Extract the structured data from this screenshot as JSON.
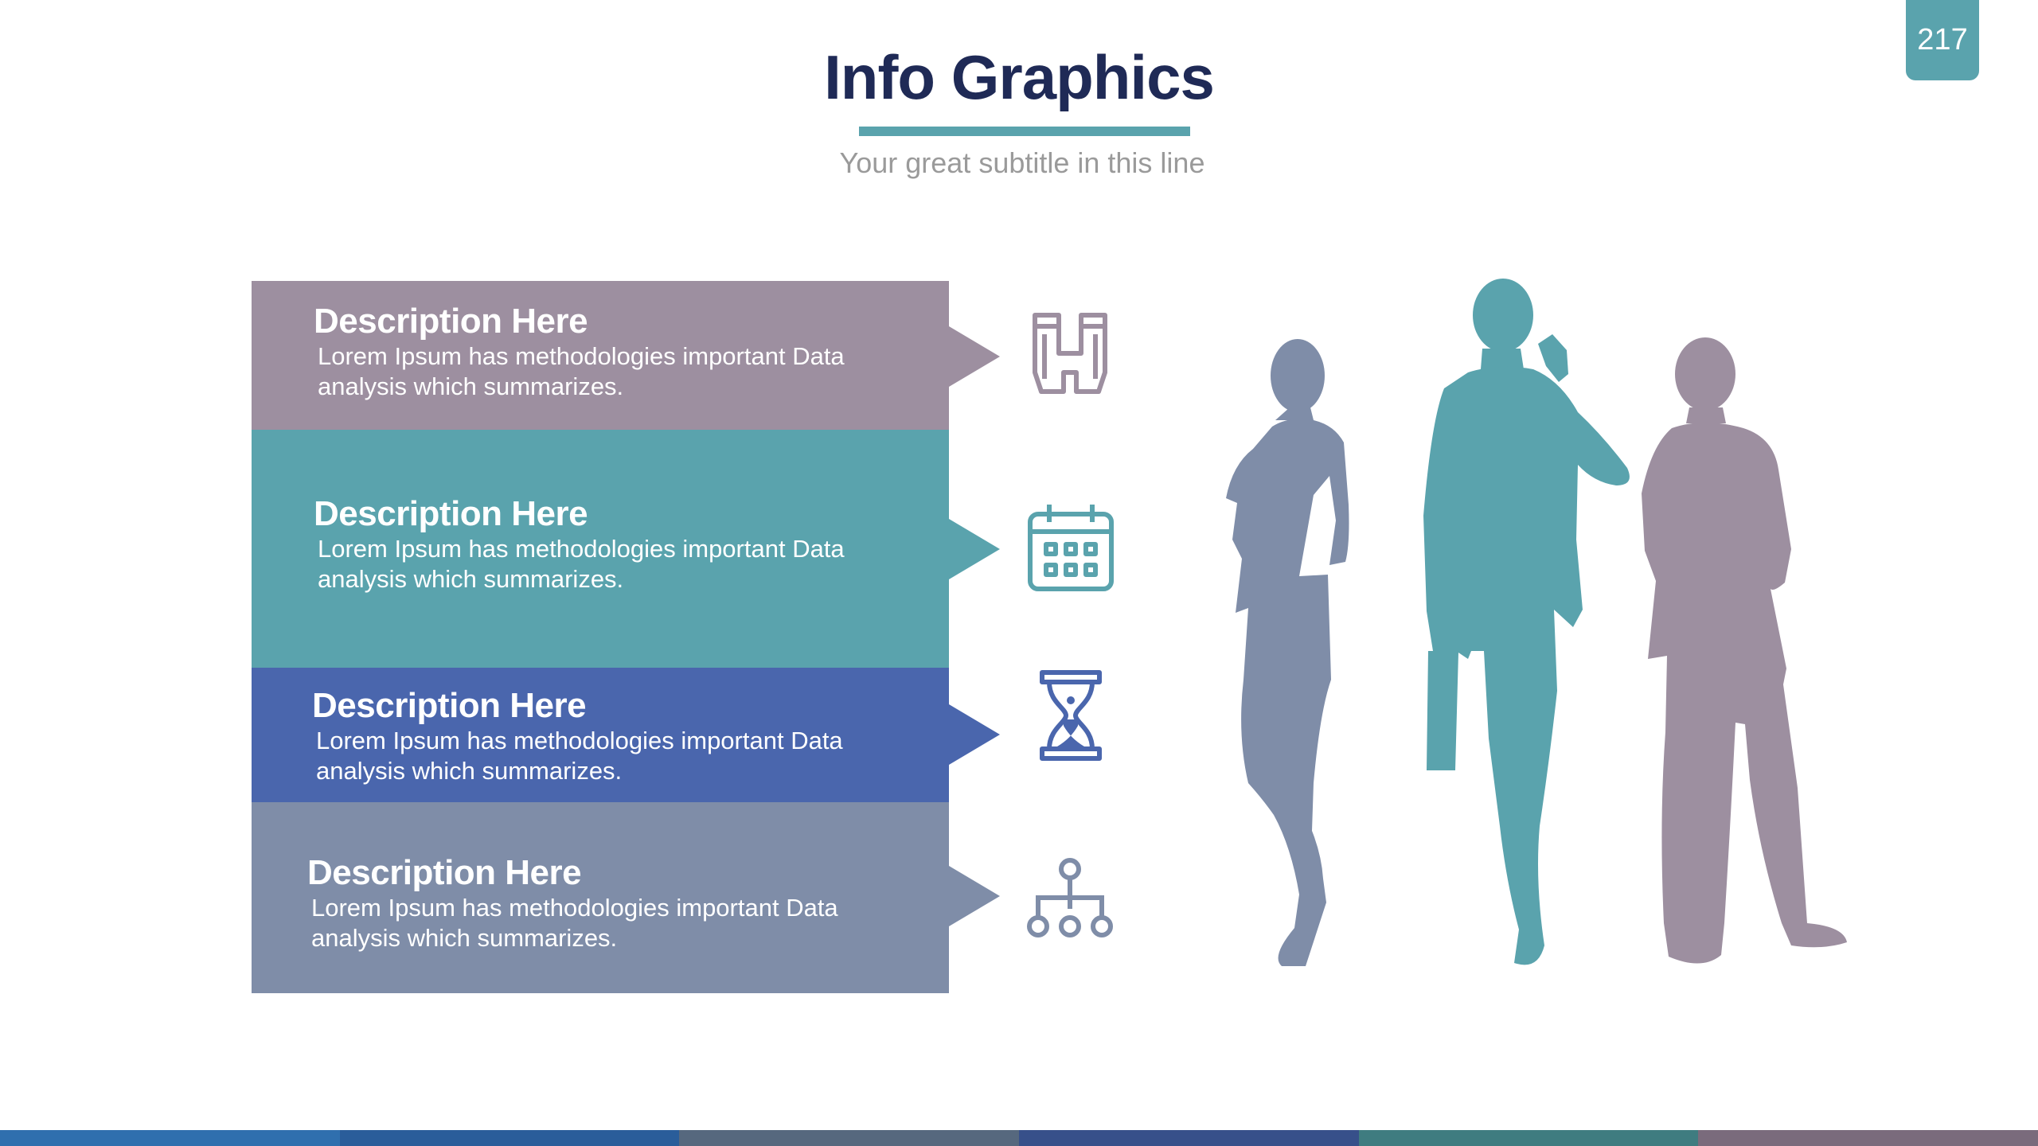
{
  "slide": {
    "page_number": "217",
    "title": "Info Graphics",
    "subtitle": "Your great subtitle in this line"
  },
  "items": [
    {
      "heading": "Description Here",
      "body": "Lorem Ipsum has methodologies important Data analysis which summarizes.",
      "color": "#9d8fa0",
      "icon": "binoculars-icon"
    },
    {
      "heading": "Description Here",
      "body": "Lorem Ipsum has methodologies important Data analysis which summarizes.",
      "color": "#5aa3ad",
      "icon": "calendar-icon"
    },
    {
      "heading": "Description Here",
      "body": "Lorem Ipsum has methodologies important Data analysis which summarizes.",
      "color": "#4a66ad",
      "icon": "hourglass-icon"
    },
    {
      "heading": "Description Here",
      "body": "Lorem Ipsum has methodologies important Data analysis which summarizes.",
      "color": "#7f8da8",
      "icon": "hierarchy-icon"
    }
  ],
  "illustration": {
    "figures": [
      {
        "icon": "businesswoman-silhouette-icon",
        "color": "#7f8da8"
      },
      {
        "icon": "businessman-phone-silhouette-icon",
        "color": "#5aa3ad"
      },
      {
        "icon": "businessman-silhouette-icon",
        "color": "#9d8fa0"
      }
    ]
  },
  "footer_colors": [
    "#2f6fae",
    "#2a5d9a",
    "#56687e",
    "#37508a",
    "#3f7c80",
    "#7a6b7c"
  ]
}
